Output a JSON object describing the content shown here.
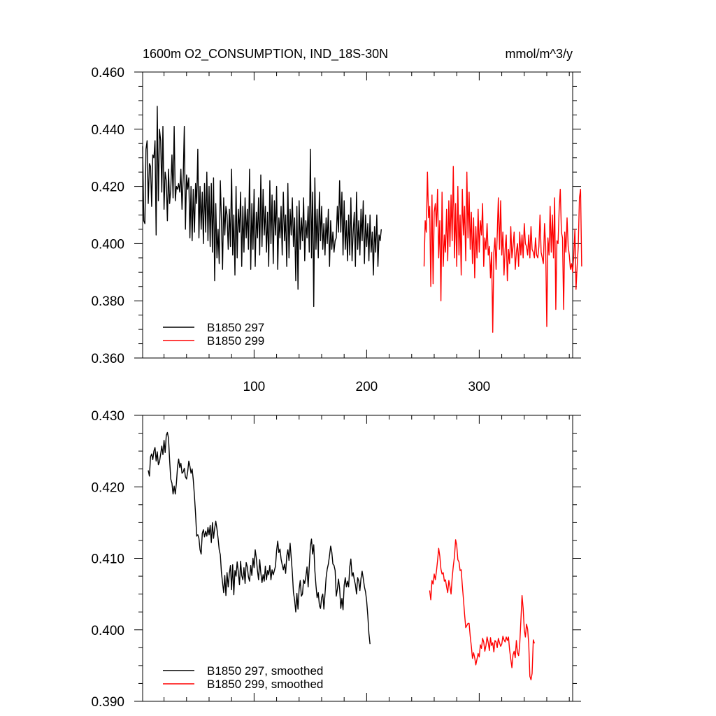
{
  "figure": {
    "title_left": "1600m O2_CONSUMPTION, IND_18S-30N",
    "title_right": "mmol/m^3/y"
  },
  "colors": {
    "series_297": "#000000",
    "series_299": "#ff0000"
  },
  "chart_data": [
    {
      "type": "line",
      "title": "",
      "xlabel": "",
      "ylabel": "",
      "xlim": [
        1,
        383
      ],
      "ylim": [
        0.36,
        0.46
      ],
      "x_ticks": [
        100,
        200,
        300
      ],
      "x_tick_labels": [
        "100",
        "200",
        "300"
      ],
      "y_ticks": [
        0.36,
        0.38,
        0.4,
        0.42,
        0.44,
        0.46
      ],
      "y_tick_labels": [
        "0.360",
        "0.380",
        "0.400",
        "0.420",
        "0.440",
        "0.460"
      ],
      "legend_position": "bottom-left",
      "series": [
        {
          "name": "B1850 297",
          "color": "#000000",
          "x_start": 1,
          "values": [
            0.434,
            0.408,
            0.407,
            0.433,
            0.436,
            0.414,
            0.428,
            0.427,
            0.413,
            0.431,
            0.43,
            0.436,
            0.403,
            0.448,
            0.415,
            0.44,
            0.436,
            0.418,
            0.441,
            0.412,
            0.425,
            0.422,
            0.408,
            0.426,
            0.414,
            0.419,
            0.431,
            0.416,
            0.441,
            0.415,
            0.42,
            0.419,
            0.421,
            0.418,
            0.426,
            0.412,
            0.423,
            0.441,
            0.405,
            0.424,
            0.419,
            0.423,
            0.402,
            0.42,
            0.401,
            0.419,
            0.404,
            0.421,
            0.414,
            0.433,
            0.402,
            0.42,
            0.405,
            0.418,
            0.4,
            0.421,
            0.404,
            0.425,
            0.401,
            0.42,
            0.399,
            0.421,
            0.397,
            0.423,
            0.387,
            0.414,
            0.395,
            0.405,
            0.393,
            0.422,
            0.408,
            0.391,
            0.416,
            0.403,
            0.413,
            0.41,
            0.398,
            0.412,
            0.399,
            0.426,
            0.396,
            0.41,
            0.389,
            0.42,
            0.395,
            0.412,
            0.404,
            0.418,
            0.392,
            0.413,
            0.397,
            0.416,
            0.402,
            0.412,
            0.398,
            0.426,
            0.391,
            0.414,
            0.398,
            0.419,
            0.392,
            0.411,
            0.402,
            0.416,
            0.396,
            0.424,
            0.399,
            0.419,
            0.403,
            0.413,
            0.397,
            0.411,
            0.392,
            0.422,
            0.4,
            0.417,
            0.393,
            0.415,
            0.403,
            0.42,
            0.391,
            0.409,
            0.402,
            0.413,
            0.396,
            0.418,
            0.401,
            0.41,
            0.392,
            0.421,
            0.395,
            0.412,
            0.403,
            0.416,
            0.399,
            0.409,
            0.387,
            0.413,
            0.384,
            0.415,
            0.398,
            0.409,
            0.401,
            0.416,
            0.394,
            0.408,
            0.402,
            0.413,
            0.397,
            0.433,
            0.395,
            0.418,
            0.378,
            0.423,
            0.398,
            0.412,
            0.395,
            0.418,
            0.401,
            0.413,
            0.398,
            0.407,
            0.396,
            0.409,
            0.4,
            0.412,
            0.392,
            0.408,
            0.398,
            0.404,
            0.397,
            0.401,
            0.402,
            0.413,
            0.404,
            0.422,
            0.404,
            0.418,
            0.396,
            0.415,
            0.398,
            0.408,
            0.394,
            0.41,
            0.396,
            0.416,
            0.394,
            0.404,
            0.411,
            0.392,
            0.418,
            0.398,
            0.408,
            0.396,
            0.412,
            0.401,
            0.415,
            0.393,
            0.41,
            0.399,
            0.407,
            0.394,
            0.41,
            0.397,
            0.404,
            0.389,
            0.406,
            0.397,
            0.41,
            0.392,
            0.403,
            0.401,
            0.405
          ]
        },
        {
          "name": "B1850 299",
          "color": "#ff0000",
          "x_start": 251,
          "values": [
            0.392,
            0.408,
            0.404,
            0.425,
            0.409,
            0.413,
            0.385,
            0.417,
            0.386,
            0.411,
            0.414,
            0.406,
            0.419,
            0.395,
            0.408,
            0.38,
            0.418,
            0.392,
            0.403,
            0.397,
            0.412,
            0.394,
            0.415,
            0.399,
            0.417,
            0.401,
            0.427,
            0.395,
            0.414,
            0.392,
            0.42,
            0.396,
            0.41,
            0.389,
            0.419,
            0.403,
            0.413,
            0.394,
            0.425,
            0.402,
            0.418,
            0.398,
            0.411,
            0.393,
            0.409,
            0.388,
            0.406,
            0.395,
            0.412,
            0.397,
            0.408,
            0.403,
            0.414,
            0.392,
            0.402,
            0.398,
            0.407,
            0.396,
            0.399,
            0.388,
            0.397,
            0.369,
            0.397,
            0.402,
            0.391,
            0.403,
            0.416,
            0.398,
            0.415,
            0.396,
            0.404,
            0.389,
            0.398,
            0.403,
            0.387,
            0.398,
            0.393,
            0.406,
            0.395,
            0.399,
            0.404,
            0.391,
            0.397,
            0.4,
            0.392,
            0.404,
            0.396,
            0.403,
            0.395,
            0.407,
            0.4,
            0.399,
            0.396,
            0.403,
            0.395,
            0.406,
            0.398,
            0.397,
            0.395,
            0.402,
            0.396,
            0.395,
            0.399,
            0.41,
            0.397,
            0.395,
            0.393,
            0.407,
            0.399,
            0.371,
            0.402,
            0.396,
            0.413,
            0.397,
            0.41,
            0.395,
            0.416,
            0.377,
            0.401,
            0.4,
            0.412,
            0.419,
            0.404,
            0.402,
            0.377,
            0.404,
            0.397,
            0.409,
            0.399,
            0.396,
            0.391,
            0.393,
            0.39,
            0.396,
            0.405,
            0.384,
            0.392,
            0.399,
            0.416,
            0.419,
            0.392
          ]
        }
      ]
    },
    {
      "type": "line",
      "title": "",
      "xlabel": "",
      "ylabel": "",
      "xlim": [
        1,
        383
      ],
      "ylim": [
        0.39,
        0.43
      ],
      "x_ticks": [
        100,
        200,
        300
      ],
      "x_tick_labels": [],
      "y_ticks": [
        0.39,
        0.4,
        0.41,
        0.42,
        0.43
      ],
      "y_tick_labels": [
        "0.390",
        "0.400",
        "0.410",
        "0.420",
        "0.430"
      ],
      "legend_position": "bottom-left",
      "series": [
        {
          "name": "B1850 297, smoothed",
          "color": "#000000",
          "x_start": 6,
          "values": [
            0.4223,
            0.4215,
            0.4242,
            0.4246,
            0.4238,
            0.425,
            0.4255,
            0.4236,
            0.4249,
            0.4231,
            0.4235,
            0.4246,
            0.4257,
            0.4245,
            0.4265,
            0.4248,
            0.4272,
            0.4276,
            0.4268,
            0.4237,
            0.4211,
            0.4205,
            0.419,
            0.4201,
            0.419,
            0.4205,
            0.4228,
            0.4239,
            0.4227,
            0.4233,
            0.4219,
            0.4221,
            0.4226,
            0.4214,
            0.4211,
            0.4221,
            0.4236,
            0.4229,
            0.4219,
            0.4225,
            0.421,
            0.4187,
            0.4162,
            0.4131,
            0.4133,
            0.4128,
            0.4112,
            0.4106,
            0.4135,
            0.414,
            0.413,
            0.4138,
            0.4131,
            0.4143,
            0.4133,
            0.4146,
            0.4122,
            0.415,
            0.4128,
            0.4142,
            0.4152,
            0.4141,
            0.4128,
            0.4112,
            0.4105,
            0.408,
            0.4066,
            0.4052,
            0.4076,
            0.4048,
            0.408,
            0.406,
            0.4079,
            0.409,
            0.4056,
            0.4091,
            0.4049,
            0.4083,
            0.4075,
            0.4095,
            0.4081,
            0.4063,
            0.4096,
            0.4076,
            0.407,
            0.4087,
            0.4065,
            0.4094,
            0.4088,
            0.4074,
            0.4068,
            0.409,
            0.4076,
            0.41,
            0.4087,
            0.4112,
            0.41,
            0.4083,
            0.407,
            0.4098,
            0.408,
            0.4066,
            0.4077,
            0.4068,
            0.4089,
            0.407,
            0.4083,
            0.4077,
            0.409,
            0.407,
            0.4084,
            0.4077,
            0.4083,
            0.4089,
            0.4111,
            0.4124,
            0.4108,
            0.4113,
            0.4099,
            0.4091,
            0.4084,
            0.4092,
            0.4079,
            0.4103,
            0.4112,
            0.4097,
            0.4121,
            0.4101,
            0.408,
            0.4052,
            0.4042,
            0.4025,
            0.4051,
            0.4029,
            0.4057,
            0.4069,
            0.4047,
            0.405,
            0.407,
            0.4065,
            0.4074,
            0.4088,
            0.406,
            0.4089,
            0.4117,
            0.4127,
            0.4106,
            0.4119,
            0.4083,
            0.4062,
            0.4045,
            0.4052,
            0.4034,
            0.403,
            0.4045,
            0.405,
            0.4029,
            0.405,
            0.4073,
            0.4085,
            0.4092,
            0.4104,
            0.4117,
            0.4109,
            0.4092,
            0.409,
            0.4083,
            0.4047,
            0.4057,
            0.4071,
            0.4058,
            0.403,
            0.4044,
            0.4028,
            0.4062,
            0.4073,
            0.406,
            0.4068,
            0.406,
            0.4088,
            0.4099,
            0.4075,
            0.408,
            0.407,
            0.4063,
            0.405,
            0.4073,
            0.4068,
            0.4055,
            0.4072,
            0.4082,
            0.4072,
            0.406,
            0.4053,
            0.404,
            0.402,
            0.3995,
            0.398
          ]
        },
        {
          "name": "B1850 299, smoothed",
          "color": "#ff0000",
          "x_start": 256,
          "values": [
            0.4055,
            0.4042,
            0.4069,
            0.4064,
            0.4078,
            0.407,
            0.4082,
            0.4097,
            0.4114,
            0.4103,
            0.4085,
            0.4078,
            0.408,
            0.4068,
            0.407,
            0.406,
            0.4052,
            0.4069,
            0.4061,
            0.405,
            0.4073,
            0.4089,
            0.4103,
            0.4126,
            0.4118,
            0.4098,
            0.4095,
            0.4083,
            0.4084,
            0.4062,
            0.4043,
            0.4022,
            0.4003,
            0.4006,
            0.4009,
            0.4009,
            0.3991,
            0.3977,
            0.396,
            0.3968,
            0.3961,
            0.3951,
            0.3959,
            0.3967,
            0.3962,
            0.3979,
            0.3974,
            0.3988,
            0.3983,
            0.397,
            0.3978,
            0.399,
            0.3982,
            0.3971,
            0.3989,
            0.3978,
            0.3982,
            0.3969,
            0.3985,
            0.3983,
            0.3975,
            0.3988,
            0.3982,
            0.3977,
            0.398,
            0.3991,
            0.3986,
            0.3983,
            0.399,
            0.3985,
            0.399,
            0.3972,
            0.3959,
            0.3947,
            0.3965,
            0.397,
            0.3961,
            0.3985,
            0.3968,
            0.3964,
            0.398,
            0.4012,
            0.4048,
            0.403,
            0.4,
            0.399,
            0.4008,
            0.4001,
            0.398,
            0.3935,
            0.393,
            0.3939,
            0.3986,
            0.3981
          ]
        }
      ]
    }
  ]
}
